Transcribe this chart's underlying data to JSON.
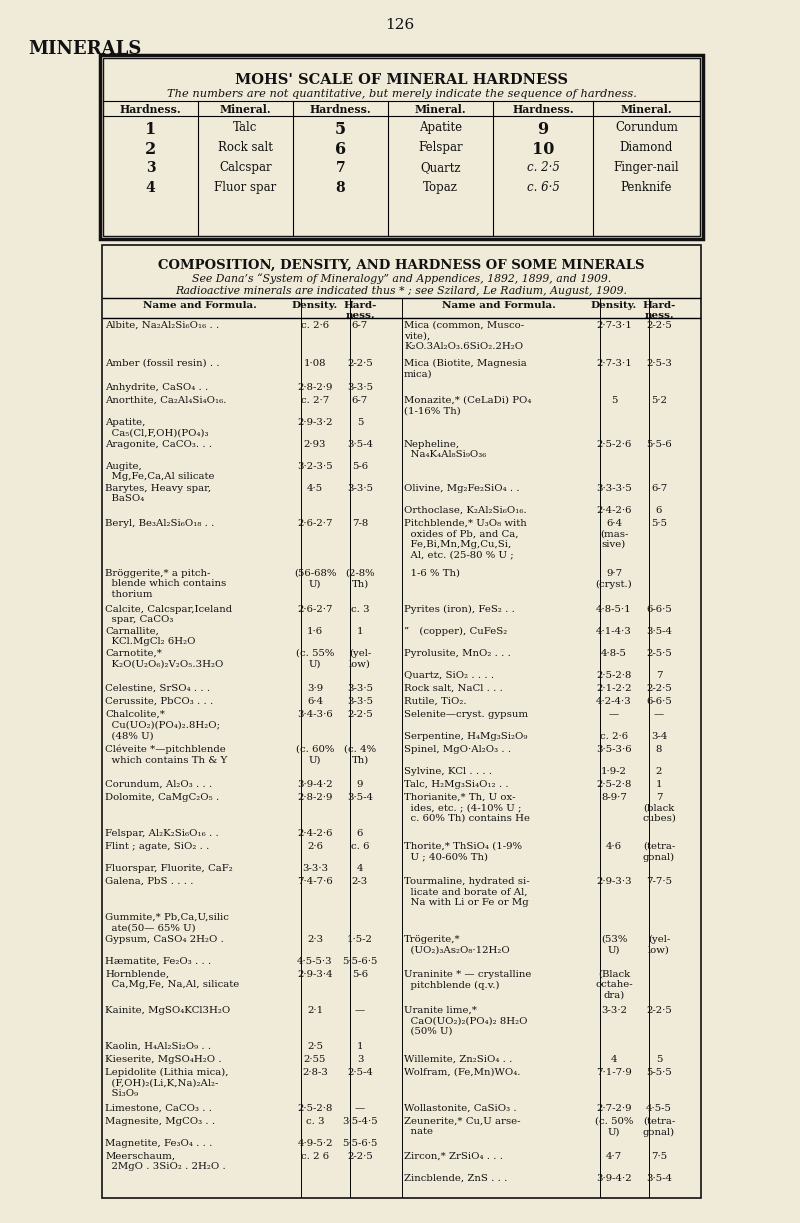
{
  "page_number": "126",
  "page_heading": "MINERALS",
  "bg_color": "#f0ead8",
  "table1_title": "MOHS' SCALE OF MINERAL HARDNESS",
  "table1_subtitle": "The numbers are not quantitative, but merely indicate the sequence of hardness.",
  "table1_headers": [
    "Hardness.",
    "Mineral.",
    "Hardness.",
    "Mineral.",
    "Hardness.",
    "Mineral."
  ],
  "table1_rows": [
    [
      "1",
      "Talc",
      "5",
      "Apatite",
      "9",
      "Corundum"
    ],
    [
      "2",
      "Rock salt",
      "6",
      "Felspar",
      "10",
      "Diamond"
    ],
    [
      "3",
      "Calcspar",
      "7",
      "Quartz",
      "c. 2·5",
      "Finger-nail"
    ],
    [
      "4",
      "Fluor spar",
      "8",
      "Topaz",
      "c. 6·5",
      "Penknife"
    ]
  ],
  "table2_title": "COMPOSITION, DENSITY, AND HARDNESS OF SOME MINERALS",
  "table2_sub1": "See Dana’s “System of Mineralogy” and Appendices, 1892, 1899, and 1909.",
  "table2_sub2": "Radioactive minerals are indicated thus * ; see Szilard, Le Radium, August, 1909."
}
